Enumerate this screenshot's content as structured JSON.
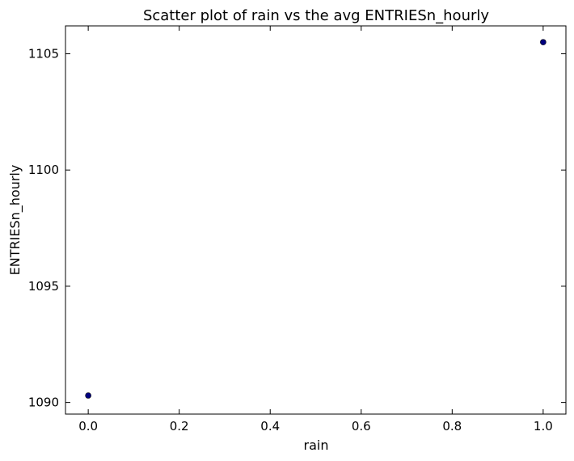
{
  "chart_data": {
    "type": "scatter",
    "title": "Scatter plot of rain vs the avg ENTRIESn_hourly",
    "xlabel": "rain",
    "ylabel": "ENTRIESn_hourly",
    "xlim": [
      -0.05,
      1.05
    ],
    "ylim": [
      1089.5,
      1106.2
    ],
    "xticks": [
      0.0,
      0.2,
      0.4,
      0.6,
      0.8,
      1.0
    ],
    "xtick_labels": [
      "0.0",
      "0.2",
      "0.4",
      "0.6",
      "0.8",
      "1.0"
    ],
    "yticks": [
      1090,
      1095,
      1100,
      1105
    ],
    "ytick_labels": [
      "1090",
      "1095",
      "1100",
      "1105"
    ],
    "grid": false,
    "series": [
      {
        "color": "#00007f",
        "x": [
          0.0,
          1.0
        ],
        "y": [
          1090.3,
          1105.5
        ]
      }
    ]
  }
}
